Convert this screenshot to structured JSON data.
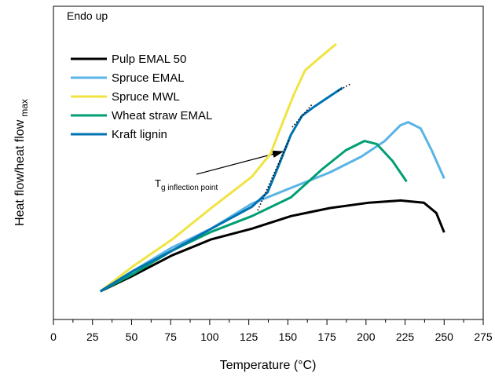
{
  "chart_data": {
    "type": "line",
    "y_label": {
      "main": "Heat flow/heat flow",
      "sub": "max"
    },
    "x_label": "Temperature (°C)",
    "annotations": {
      "corner": "Endo up",
      "tg": {
        "main": "T",
        "sub": "g inflection point"
      }
    },
    "xlim": [
      0,
      275
    ],
    "xticks": [
      0,
      25,
      50,
      75,
      100,
      125,
      150,
      175,
      200,
      225,
      250,
      275
    ],
    "ylim": [
      0,
      100
    ],
    "series": [
      {
        "name": "Pulp EMAL 50",
        "color": "#000000",
        "x": [
          30,
          51,
          76,
          101,
          127,
          152,
          177,
          202,
          222,
          237,
          245,
          250
        ],
        "values": [
          9,
          14,
          20.5,
          25.6,
          29,
          33,
          35.6,
          37.3,
          38,
          37.3,
          34,
          27.8
        ]
      },
      {
        "name": "Spruce EMAL",
        "color": "#5ab4e5",
        "x": [
          30,
          51,
          76,
          101,
          127,
          152,
          177,
          197,
          212,
          222,
          227,
          235,
          242,
          250
        ],
        "values": [
          9,
          15.5,
          23,
          29,
          37,
          42,
          47,
          52,
          57,
          62,
          63,
          61,
          54,
          45
        ]
      },
      {
        "name": "Spruce MWL",
        "color": "#f0e442",
        "x": [
          30,
          51,
          76,
          101,
          127,
          139,
          146,
          154,
          161,
          169,
          181
        ],
        "values": [
          9,
          17,
          25.6,
          35.6,
          45.6,
          53,
          62,
          72,
          79.5,
          83,
          88
        ]
      },
      {
        "name": "Wheat straw EMAL",
        "color": "#009e73",
        "x": [
          30,
          51,
          76,
          101,
          127,
          152,
          172,
          187,
          199,
          207,
          217,
          226
        ],
        "values": [
          9,
          14.5,
          22,
          28,
          33,
          39,
          48,
          54,
          57,
          56,
          50.6,
          44
        ]
      },
      {
        "name": "Kraft lignin",
        "color": "#0072b2",
        "x": [
          30,
          51,
          76,
          101,
          127,
          137,
          144,
          152,
          159,
          167,
          185
        ],
        "values": [
          9,
          15.5,
          22,
          29,
          36,
          40.6,
          49,
          59,
          65,
          68,
          74
        ]
      }
    ]
  }
}
